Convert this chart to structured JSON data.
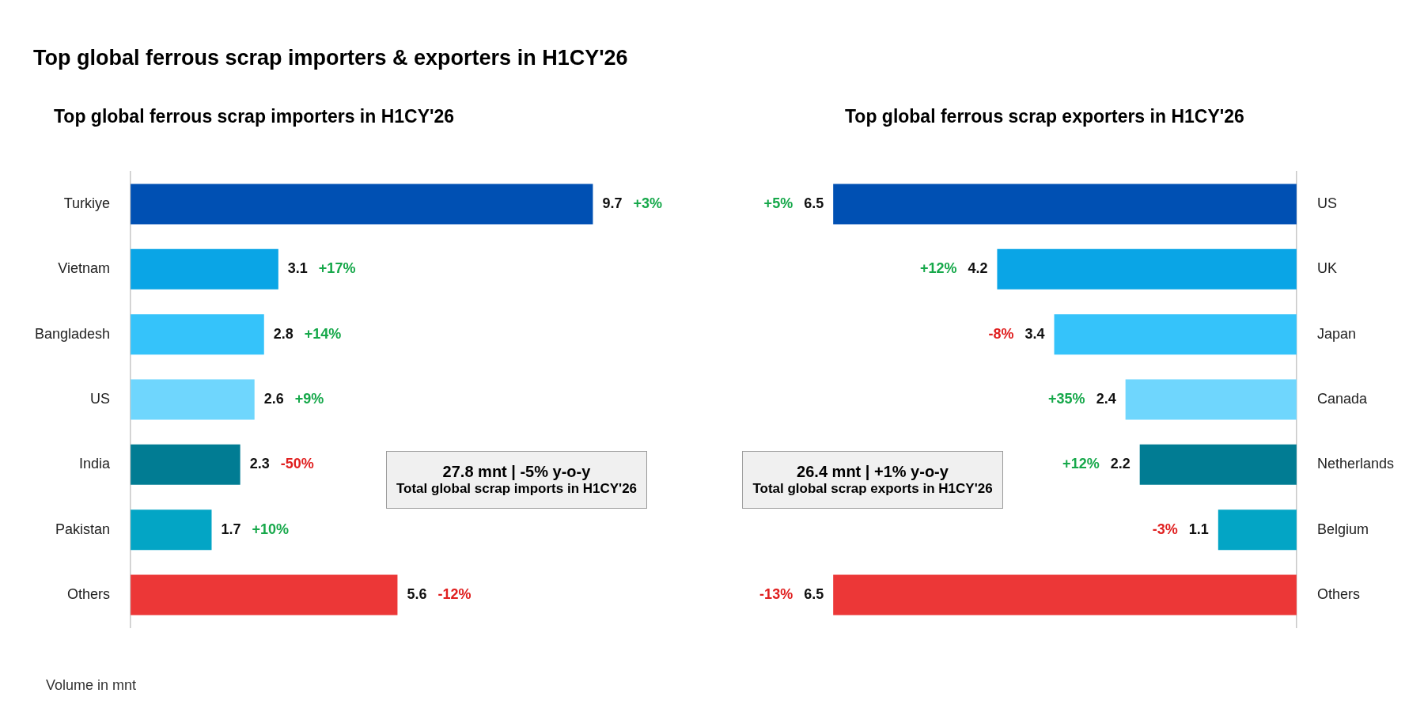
{
  "chart_data": [
    {
      "type": "bar",
      "orientation": "horizontal",
      "title": "Top global ferrous scrap importers & exporters in H1CY'26",
      "subtitle": "Top global ferrous scrap importers in H1CY'26",
      "categories": [
        "Turkiye",
        "Vietnam",
        "Bangladesh",
        "US",
        "India",
        "Pakistan",
        "Others"
      ],
      "values": [
        9.7,
        3.1,
        2.8,
        2.6,
        2.3,
        1.7,
        5.6
      ],
      "colors": [
        "#0050b3",
        "#0aa5e6",
        "#35c3fa",
        "#6fd6fd",
        "#017c93",
        "#03a5c5",
        "#ec3737"
      ],
      "tick_labels": "y",
      "data_labels": true,
      "legend": false,
      "grid": false,
      "annotations": [
        {
          "text": "+3%",
          "x": 9.7,
          "y": "Turkiye"
        },
        {
          "text": "+17%",
          "x": 3.1,
          "y": "Vietnam"
        },
        {
          "text": "+14%",
          "x": 2.8,
          "y": "Bangladesh"
        },
        {
          "text": "+9%",
          "x": 2.6,
          "y": "US"
        },
        {
          "text": "-50%",
          "x": 2.3,
          "y": "India"
        },
        {
          "text": "+10%",
          "x": 1.7,
          "y": "Pakistan"
        },
        {
          "text": "-12%",
          "x": 5.6,
          "y": "Others"
        },
        "27.8 mnt | -5% y-o-y",
        "Total global scrap imports in H1CY'26",
        "Volume in mnt"
      ]
    },
    {
      "type": "bar",
      "orientation": "horizontal",
      "title": "Top global ferrous scrap exporters in H1CY'26",
      "categories": [
        "US",
        "UK",
        "Japan",
        "Canada",
        "Netherlands",
        "Belgium",
        "Others"
      ],
      "values": [
        6.5,
        4.2,
        3.4,
        2.4,
        2.2,
        1.1,
        6.5
      ],
      "colors": [
        "#0050b3",
        "#0aa5e6",
        "#35c3fa",
        "#6fd6fd",
        "#017c93",
        "#03a5c5",
        "#ec3737"
      ],
      "tick_labels": "y",
      "data_labels": true,
      "legend": false,
      "grid": false,
      "annotations": [
        {
          "text": "+5%",
          "x": 6.5,
          "y": "US"
        },
        {
          "text": "+12%",
          "x": 4.2,
          "y": "UK"
        },
        {
          "text": "-8%",
          "x": 3.4,
          "y": "Japan"
        },
        {
          "text": "+35%",
          "x": 2.4,
          "y": "Canada"
        },
        {
          "text": "+12%",
          "x": 2.2,
          "y": "Netherlands"
        },
        {
          "text": "-3%",
          "x": 1.1,
          "y": "Belgium"
        },
        {
          "text": "-13%",
          "x": 6.5,
          "y": "Others"
        },
        "26.4 mnt | +1% y-o-y",
        "Total global scrap exports in H1CY'26"
      ]
    }
  ]
}
